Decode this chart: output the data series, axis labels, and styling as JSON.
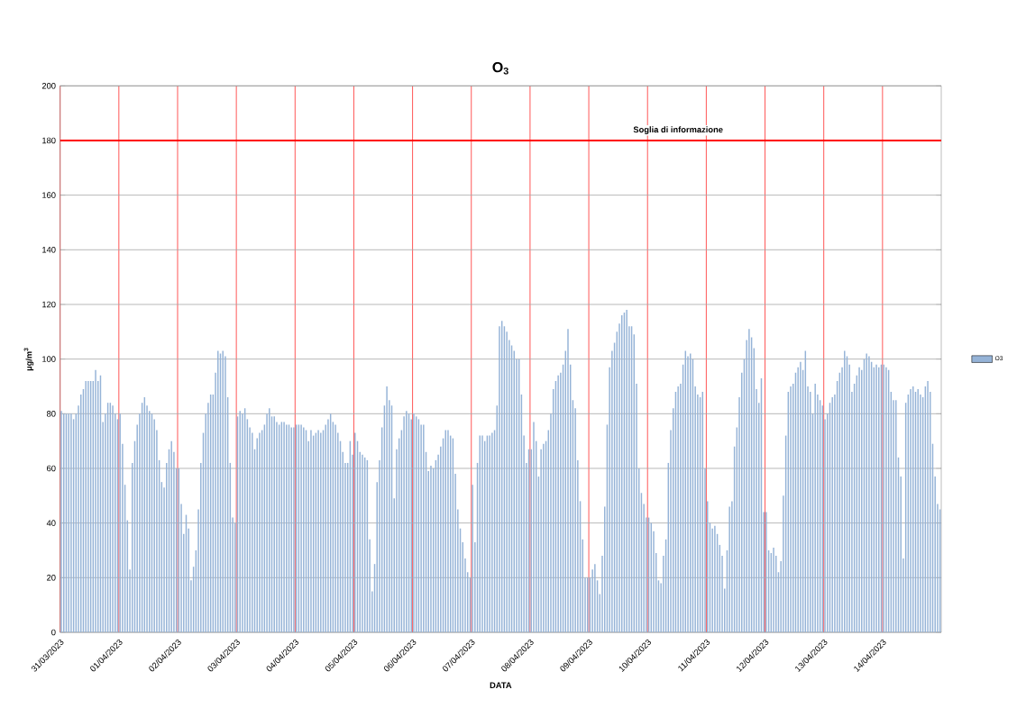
{
  "chart_data": {
    "type": "bar",
    "title": "O$_{3}$",
    "xlabel": "DATA",
    "ylabel": "µg/m$^{3}$",
    "categories": [
      "31/03/2023",
      null,
      null,
      null,
      null,
      null,
      null,
      null,
      null,
      null,
      null,
      null,
      null,
      null,
      null,
      null,
      null,
      null,
      null,
      null,
      null,
      null,
      null,
      null,
      "01/04/2023",
      null,
      null,
      null,
      null,
      null,
      null,
      null,
      null,
      null,
      null,
      null,
      null,
      null,
      null,
      null,
      null,
      null,
      null,
      null,
      null,
      null,
      null,
      null,
      "02/04/2023",
      null,
      null,
      null,
      null,
      null,
      null,
      null,
      null,
      null,
      null,
      null,
      null,
      null,
      null,
      null,
      null,
      null,
      null,
      null,
      null,
      null,
      null,
      null,
      "03/04/2023",
      null,
      null,
      null,
      null,
      null,
      null,
      null,
      null,
      null,
      null,
      null,
      null,
      null,
      null,
      null,
      null,
      null,
      null,
      null,
      null,
      null,
      null,
      null,
      "04/04/2023",
      null,
      null,
      null,
      null,
      null,
      null,
      null,
      null,
      null,
      null,
      null,
      null,
      null,
      null,
      null,
      null,
      null,
      null,
      null,
      null,
      null,
      null,
      null,
      "05/04/2023",
      null,
      null,
      null,
      null,
      null,
      null,
      null,
      null,
      null,
      null,
      null,
      null,
      null,
      null,
      null,
      null,
      null,
      null,
      null,
      null,
      null,
      null,
      null,
      "06/04/2023",
      null,
      null,
      null,
      null,
      null,
      null,
      null,
      null,
      null,
      null,
      null,
      null,
      null,
      null,
      null,
      null,
      null,
      null,
      null,
      null,
      null,
      null,
      null,
      "07/04/2023",
      null,
      null,
      null,
      null,
      null,
      null,
      null,
      null,
      null,
      null,
      null,
      null,
      null,
      null,
      null,
      null,
      null,
      null,
      null,
      null,
      null,
      null,
      null,
      "08/04/2023",
      null,
      null,
      null,
      null,
      null,
      null,
      null,
      null,
      null,
      null,
      null,
      null,
      null,
      null,
      null,
      null,
      null,
      null,
      null,
      null,
      null,
      null,
      null,
      "09/04/2023",
      null,
      null,
      null,
      null,
      null,
      null,
      null,
      null,
      null,
      null,
      null,
      null,
      null,
      null,
      null,
      null,
      null,
      null,
      null,
      null,
      null,
      null,
      null,
      "10/04/2023",
      null,
      null,
      null,
      null,
      null,
      null,
      null,
      null,
      null,
      null,
      null,
      null,
      null,
      null,
      null,
      null,
      null,
      null,
      null,
      null,
      null,
      null,
      null,
      "11/04/2023",
      null,
      null,
      null,
      null,
      null,
      null,
      null,
      null,
      null,
      null,
      null,
      null,
      null,
      null,
      null,
      null,
      null,
      null,
      null,
      null,
      null,
      null,
      null,
      "12/04/2023",
      null,
      null,
      null,
      null,
      null,
      null,
      null,
      null,
      null,
      null,
      null,
      null,
      null,
      null,
      null,
      null,
      null,
      null,
      null,
      null,
      null,
      null,
      null,
      "13/04/2023",
      null,
      null,
      null,
      null,
      null,
      null,
      null,
      null,
      null,
      null,
      null,
      null,
      null,
      null,
      null,
      null,
      null,
      null,
      null,
      null,
      null,
      null,
      null,
      "14/04/2023",
      null,
      null,
      null,
      null,
      null,
      null,
      null,
      null,
      null,
      null,
      null,
      null,
      null,
      null,
      null,
      null,
      null,
      null,
      null,
      null,
      null,
      null,
      null
    ],
    "series": [
      {
        "name": "O3",
        "color": "#95b3d7",
        "values": [
          81,
          80,
          80,
          80,
          80,
          78,
          80,
          83,
          87,
          89,
          92,
          92,
          92,
          92,
          96,
          92,
          94,
          77,
          80,
          84,
          84,
          83,
          80,
          78,
          80,
          69,
          54,
          41,
          23,
          62,
          70,
          76,
          80,
          84,
          86,
          83,
          81,
          80,
          78,
          74,
          63,
          55,
          53,
          62,
          67,
          70,
          66,
          60,
          60,
          47,
          36,
          43,
          38,
          19,
          24,
          30,
          45,
          62,
          73,
          80,
          84,
          87,
          87,
          95,
          103,
          102,
          103,
          101,
          86,
          62,
          42,
          40,
          79,
          81,
          80,
          82,
          78,
          75,
          73,
          67,
          71,
          73,
          74,
          76,
          80,
          82,
          79,
          79,
          77,
          76,
          77,
          77,
          76,
          76,
          75,
          75,
          76,
          76,
          76,
          75,
          74,
          70,
          74,
          72,
          73,
          74,
          73,
          74,
          76,
          78,
          80,
          77,
          76,
          73,
          70,
          66,
          62,
          62,
          70,
          65,
          73,
          70,
          66,
          65,
          64,
          63,
          34,
          15,
          25,
          55,
          63,
          75,
          83,
          90,
          85,
          83,
          49,
          67,
          71,
          74,
          79,
          81,
          80,
          78,
          80,
          79,
          78,
          76,
          76,
          66,
          59,
          61,
          60,
          63,
          65,
          68,
          71,
          74,
          74,
          72,
          71,
          58,
          45,
          38,
          33,
          27,
          22,
          20,
          54,
          33,
          62,
          72,
          72,
          70,
          72,
          72,
          73,
          74,
          83,
          112,
          114,
          112,
          110,
          107,
          105,
          103,
          100,
          100,
          87,
          72,
          62,
          67,
          67,
          77,
          70,
          57,
          67,
          69,
          70,
          74,
          80,
          89,
          92,
          94,
          95,
          98,
          103,
          111,
          98,
          85,
          82,
          63,
          48,
          34,
          20,
          20,
          20,
          23,
          25,
          19,
          14,
          28,
          46,
          76,
          97,
          103,
          106,
          110,
          113,
          116,
          117,
          118,
          112,
          112,
          109,
          91,
          60,
          51,
          47,
          42,
          42,
          40,
          37,
          29,
          19,
          18,
          28,
          34,
          62,
          74,
          82,
          88,
          90,
          91,
          98,
          103,
          101,
          102,
          100,
          90,
          87,
          86,
          88,
          60,
          48,
          40,
          38,
          39,
          36,
          32,
          28,
          16,
          30,
          46,
          48,
          68,
          75,
          86,
          95,
          100,
          107,
          111,
          108,
          104,
          89,
          84,
          93,
          44,
          44,
          30,
          29,
          31,
          28,
          22,
          26,
          50,
          72,
          88,
          90,
          91,
          95,
          97,
          99,
          96,
          103,
          90,
          88,
          80,
          91,
          87,
          85,
          83,
          78,
          80,
          84,
          86,
          87,
          92,
          95,
          97,
          103,
          101,
          98,
          88,
          91,
          94,
          97,
          96,
          100,
          102,
          101,
          99,
          97,
          98,
          97,
          98,
          98,
          97,
          96,
          88,
          85,
          85,
          64,
          57,
          27,
          84,
          87,
          89,
          90,
          88,
          89,
          87,
          86,
          90,
          92,
          88,
          69,
          57,
          47,
          45
        ]
      }
    ],
    "ylim": [
      0,
      200
    ],
    "yticks": [
      0,
      20,
      40,
      60,
      80,
      100,
      120,
      140,
      160,
      180,
      200
    ],
    "grid": true,
    "legend": "right",
    "ref_lines": [
      {
        "axis": "y",
        "value": 180,
        "label": "Soglia di informazione",
        "color": "#ff0000"
      }
    ]
  }
}
